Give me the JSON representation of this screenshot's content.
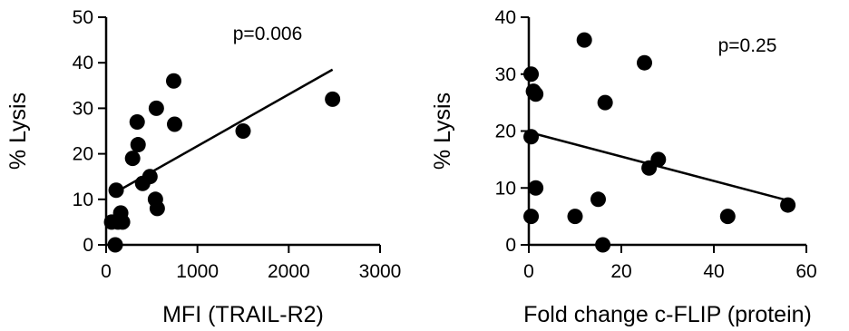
{
  "chart_data": [
    {
      "type": "scatter",
      "xlabel": "MFI (TRAIL-R2)",
      "ylabel": "% Lysis",
      "annotation": "p=0.006",
      "xlim": [
        0,
        3000
      ],
      "ylim": [
        0,
        50
      ],
      "xticks": [
        0,
        1000,
        2000,
        3000
      ],
      "yticks": [
        0,
        10,
        20,
        30,
        40,
        50
      ],
      "xtick_labels": [
        "0",
        "1000",
        "2000",
        "3000"
      ],
      "ytick_labels": [
        "0",
        "10",
        "20",
        "30",
        "40",
        "50"
      ],
      "grid": false,
      "points": [
        {
          "x": 60,
          "y": 5
        },
        {
          "x": 100,
          "y": 0
        },
        {
          "x": 110,
          "y": 12
        },
        {
          "x": 130,
          "y": 5
        },
        {
          "x": 160,
          "y": 7
        },
        {
          "x": 180,
          "y": 5
        },
        {
          "x": 290,
          "y": 19
        },
        {
          "x": 340,
          "y": 27
        },
        {
          "x": 350,
          "y": 22
        },
        {
          "x": 400,
          "y": 13.5
        },
        {
          "x": 480,
          "y": 15
        },
        {
          "x": 540,
          "y": 10
        },
        {
          "x": 550,
          "y": 30
        },
        {
          "x": 560,
          "y": 8
        },
        {
          "x": 740,
          "y": 36
        },
        {
          "x": 750,
          "y": 26.5
        },
        {
          "x": 1500,
          "y": 25
        },
        {
          "x": 2480,
          "y": 32
        }
      ],
      "fit_line": {
        "x": [
          100,
          2480
        ],
        "y": [
          11.5,
          38.5
        ]
      }
    },
    {
      "type": "scatter",
      "xlabel": "Fold change c-FLIP (protein)",
      "ylabel": "% Lysis",
      "annotation": "p=0.25",
      "xlim": [
        0,
        60
      ],
      "ylim": [
        0,
        40
      ],
      "xticks": [
        0,
        20,
        40,
        60
      ],
      "yticks": [
        0,
        10,
        20,
        30,
        40
      ],
      "xtick_labels": [
        "0",
        "20",
        "40",
        "60"
      ],
      "ytick_labels": [
        "0",
        "10",
        "20",
        "30",
        "40"
      ],
      "grid": false,
      "points": [
        {
          "x": 0.5,
          "y": 30
        },
        {
          "x": 1,
          "y": 27
        },
        {
          "x": 1.5,
          "y": 26.5
        },
        {
          "x": 0.5,
          "y": 19
        },
        {
          "x": 1.5,
          "y": 10
        },
        {
          "x": 0.5,
          "y": 5
        },
        {
          "x": 12,
          "y": 36
        },
        {
          "x": 16.5,
          "y": 25
        },
        {
          "x": 25,
          "y": 32
        },
        {
          "x": 15,
          "y": 8
        },
        {
          "x": 10,
          "y": 5
        },
        {
          "x": 16,
          "y": 0
        },
        {
          "x": 26,
          "y": 13.5
        },
        {
          "x": 28,
          "y": 15
        },
        {
          "x": 43,
          "y": 5
        },
        {
          "x": 56,
          "y": 7
        }
      ],
      "fit_line": {
        "x": [
          0,
          56
        ],
        "y": [
          19.8,
          7.8
        ]
      }
    }
  ]
}
